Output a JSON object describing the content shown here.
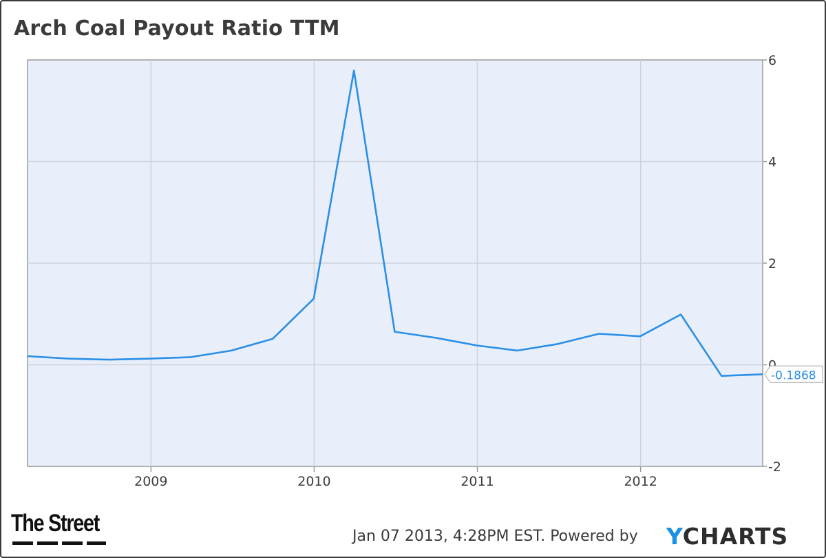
{
  "header": {
    "title": "Arch Coal Payout Ratio TTM"
  },
  "footer": {
    "timestamp": "Jan 07 2013, 4:28PM EST.",
    "powered_by": "Powered by",
    "brand_y": "Y",
    "brand_rest": "CHARTS",
    "logo_text": "The Street"
  },
  "chart_data": {
    "type": "line",
    "title": "Arch Coal Payout Ratio TTM",
    "xlabel": "",
    "ylabel": "",
    "x_tick_labels": [
      "2009",
      "2010",
      "2011",
      "2012"
    ],
    "y_tick_labels": [
      "6",
      "4",
      "2",
      "0",
      "-2"
    ],
    "xlim": [
      "2008-03-31",
      "2012-09-30"
    ],
    "ylim": [
      -2,
      6
    ],
    "grid": true,
    "y_axis_position": "right",
    "line_color": "#2a8fe6",
    "plot_background": "#e8effb",
    "series": [
      {
        "x": [
          "2008-03-31",
          "2008-06-30",
          "2008-09-30",
          "2008-12-31",
          "2009-03-31",
          "2009-06-30",
          "2009-09-30",
          "2009-12-31",
          "2010-03-31",
          "2010-06-30",
          "2010-09-30",
          "2010-12-31",
          "2011-03-31",
          "2011-06-30",
          "2011-09-30",
          "2011-12-31",
          "2012-03-31",
          "2012-06-30",
          "2012-09-30"
        ],
        "values": [
          0.17,
          0.12,
          0.1,
          0.12,
          0.15,
          0.28,
          0.51,
          1.3,
          5.79,
          0.65,
          0.53,
          0.38,
          0.28,
          0.41,
          0.61,
          0.56,
          0.99,
          -0.22,
          -0.1868
        ]
      }
    ],
    "last_value_label": "-0.1868"
  }
}
